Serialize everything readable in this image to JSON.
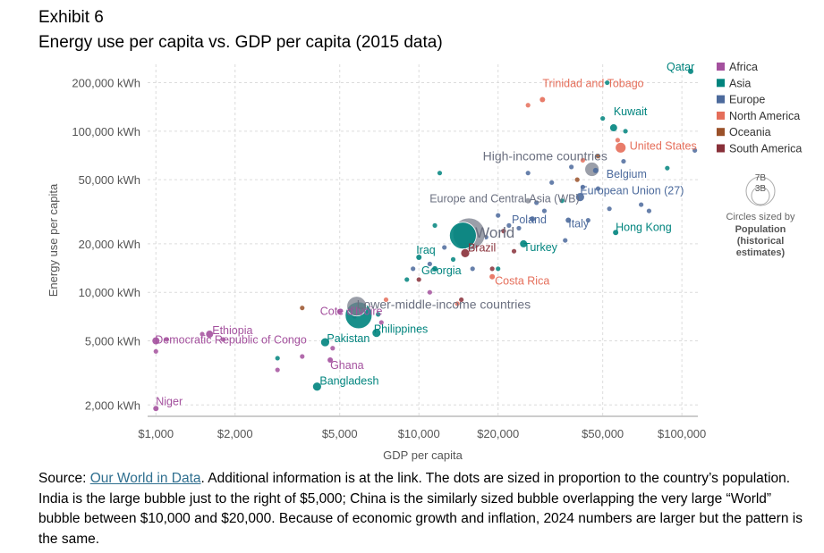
{
  "header": {
    "exhibit": "Exhibit 6",
    "title": "Energy use per capita vs. GDP per capita (2015 data)"
  },
  "source": {
    "prefix": "Source: ",
    "link_text": "Our World in Data",
    "rest": ". Additional information is at the link. The dots are sized in proportion to the country’s population. India is the large bubble just to the right of $5,000; China is the similarly sized bubble overlapping the very large “World” bubble between $10,000 and $20,000. Because of economic growth and inflation, 2024 numbers are larger but the pattern is the same."
  },
  "chart_data": {
    "type": "scatter",
    "xlabel": "GDP per capita",
    "ylabel": "Energy use per capita",
    "x_scale": "log",
    "y_scale": "log",
    "xlim": [
      930,
      115000
    ],
    "ylim": [
      1700,
      260000
    ],
    "grid": true,
    "x_ticks": [
      {
        "value": 1000,
        "label": "$1,000"
      },
      {
        "value": 2000,
        "label": "$2,000"
      },
      {
        "value": 5000,
        "label": "$5,000"
      },
      {
        "value": 10000,
        "label": "$10,000"
      },
      {
        "value": 20000,
        "label": "$20,000"
      },
      {
        "value": 50000,
        "label": "$50,000"
      },
      {
        "value": 100000,
        "label": "$100,000"
      }
    ],
    "y_ticks": [
      {
        "value": 2000,
        "label": "2,000 kWh"
      },
      {
        "value": 5000,
        "label": "5,000 kWh"
      },
      {
        "value": 10000,
        "label": "10,000 kWh"
      },
      {
        "value": 20000,
        "label": "20,000 kWh"
      },
      {
        "value": 50000,
        "label": "50,000 kWh"
      },
      {
        "value": 100000,
        "label": "100,000 kWh"
      },
      {
        "value": 200000,
        "label": "200,000 kWh"
      }
    ],
    "legend": {
      "placement": "right",
      "entries": [
        {
          "name": "Africa",
          "color": "#a4519e"
        },
        {
          "name": "Asia",
          "color": "#00847e"
        },
        {
          "name": "Europe",
          "color": "#4c6a9c"
        },
        {
          "name": "North America",
          "color": "#e56e5a"
        },
        {
          "name": "Oceania",
          "color": "#9a5129"
        },
        {
          "name": "South America",
          "color": "#883039"
        }
      ],
      "size_key": {
        "big": "7B",
        "small": "3B",
        "caption": "Circles sized by",
        "caption_bold": "Population (historical estimates)"
      }
    },
    "colors": {
      "Africa": "#a4519e",
      "Asia": "#00847e",
      "Europe": "#4c6a9c",
      "North America": "#e56e5a",
      "Oceania": "#9a5129",
      "South America": "#883039",
      "Aggregate": "#7a7f8c"
    },
    "labeled_points": [
      {
        "name": "Qatar",
        "region": "Asia",
        "x": 108000,
        "y": 235000,
        "size": 3
      },
      {
        "name": "Trinidad and Tobago",
        "region": "North America",
        "x": 29500,
        "y": 157000,
        "size": 3
      },
      {
        "name": "Kuwait",
        "region": "Asia",
        "x": 55000,
        "y": 105000,
        "size": 4
      },
      {
        "name": "United States",
        "region": "North America",
        "x": 58500,
        "y": 79000,
        "size": 6
      },
      {
        "name": "High-income countries",
        "region": "Aggregate",
        "x": 45500,
        "y": 58000,
        "size": 8,
        "aggregate": true
      },
      {
        "name": "Belgium",
        "region": "Europe",
        "x": 47000,
        "y": 57000,
        "size": 3
      },
      {
        "name": "European Union (27)",
        "region": "Europe",
        "x": 41000,
        "y": 39000,
        "size": 5
      },
      {
        "name": "Europe and Central Asia (WB)",
        "region": "Aggregate",
        "x": 26000,
        "y": 37000,
        "size": 3,
        "aggregate": true
      },
      {
        "name": "World",
        "region": "Aggregate",
        "x": 15500,
        "y": 23000,
        "size": 18,
        "aggregate": true
      },
      {
        "name": "Poland",
        "region": "Europe",
        "x": 27000,
        "y": 28500,
        "size": 3
      },
      {
        "name": "Italy",
        "region": "Europe",
        "x": 37000,
        "y": 28000,
        "size": 3
      },
      {
        "name": "Hong Kong",
        "region": "Asia",
        "x": 56000,
        "y": 23500,
        "size": 3
      },
      {
        "name": "Brazil",
        "region": "South America",
        "x": 15000,
        "y": 17500,
        "size": 5
      },
      {
        "name": "Turkey",
        "region": "Asia",
        "x": 25000,
        "y": 20000,
        "size": 4
      },
      {
        "name": "Iraq",
        "region": "Asia",
        "x": 10000,
        "y": 16500,
        "size": 3
      },
      {
        "name": "Georgia",
        "region": "Asia",
        "x": 11500,
        "y": 14000,
        "size": 3
      },
      {
        "name": "Costa Rica",
        "region": "North America",
        "x": 19000,
        "y": 12500,
        "size": 3
      },
      {
        "name": "Lower-middle-income countries",
        "region": "Aggregate",
        "x": 5800,
        "y": 8200,
        "size": 11,
        "aggregate": true
      },
      {
        "name": "Cote d'Ivoire",
        "region": "Africa",
        "x": 5000,
        "y": 7600,
        "size": 3
      },
      {
        "name": "Ethiopia",
        "region": "Africa",
        "x": 1600,
        "y": 5500,
        "size": 4
      },
      {
        "name": "Democratic Republic of Congo",
        "region": "Africa",
        "x": 1000,
        "y": 5000,
        "size": 4
      },
      {
        "name": "Pakistan",
        "region": "Asia",
        "x": 4400,
        "y": 4900,
        "size": 5
      },
      {
        "name": "Philippines",
        "region": "Asia",
        "x": 6900,
        "y": 5600,
        "size": 5
      },
      {
        "name": "Ghana",
        "region": "Africa",
        "x": 4600,
        "y": 3800,
        "size": 3
      },
      {
        "name": "Bangladesh",
        "region": "Asia",
        "x": 4100,
        "y": 2600,
        "size": 5
      },
      {
        "name": "Niger",
        "region": "Africa",
        "x": 1000,
        "y": 1900,
        "size": 3
      },
      {
        "name": "India",
        "region": "Asia",
        "x": 5900,
        "y": 7200,
        "size": 15
      },
      {
        "name": "China",
        "region": "Asia",
        "x": 14700,
        "y": 22500,
        "size": 15
      }
    ],
    "other_points": [
      {
        "region": "Africa",
        "x": 1000,
        "y": 4300
      },
      {
        "region": "Africa",
        "x": 1100,
        "y": 5100
      },
      {
        "region": "Africa",
        "x": 1500,
        "y": 5500
      },
      {
        "region": "Africa",
        "x": 1800,
        "y": 5100
      },
      {
        "region": "Africa",
        "x": 2900,
        "y": 3300
      },
      {
        "region": "Africa",
        "x": 3600,
        "y": 4000
      },
      {
        "region": "Africa",
        "x": 4700,
        "y": 4500
      },
      {
        "region": "Africa",
        "x": 5700,
        "y": 7100
      },
      {
        "region": "Africa",
        "x": 7200,
        "y": 6500
      },
      {
        "region": "Africa",
        "x": 11000,
        "y": 10000
      },
      {
        "region": "Asia",
        "x": 2900,
        "y": 3900
      },
      {
        "region": "Asia",
        "x": 7000,
        "y": 7300
      },
      {
        "region": "Asia",
        "x": 11500,
        "y": 26000
      },
      {
        "region": "Asia",
        "x": 12000,
        "y": 55000
      },
      {
        "region": "Asia",
        "x": 13500,
        "y": 16000
      },
      {
        "region": "Asia",
        "x": 20000,
        "y": 14000
      },
      {
        "region": "Asia",
        "x": 35000,
        "y": 37000
      },
      {
        "region": "Asia",
        "x": 50000,
        "y": 120000
      },
      {
        "region": "Asia",
        "x": 52000,
        "y": 200000
      },
      {
        "region": "Asia",
        "x": 61000,
        "y": 100000
      },
      {
        "region": "Asia",
        "x": 88000,
        "y": 59000
      },
      {
        "region": "Asia",
        "x": 9000,
        "y": 12000
      },
      {
        "region": "Europe",
        "x": 9500,
        "y": 14000
      },
      {
        "region": "Europe",
        "x": 11000,
        "y": 15000
      },
      {
        "region": "Europe",
        "x": 12500,
        "y": 19000
      },
      {
        "region": "Europe",
        "x": 16000,
        "y": 14000
      },
      {
        "region": "Europe",
        "x": 18000,
        "y": 22000
      },
      {
        "region": "Europe",
        "x": 20000,
        "y": 30000
      },
      {
        "region": "Europe",
        "x": 22000,
        "y": 26000
      },
      {
        "region": "Europe",
        "x": 24000,
        "y": 25000
      },
      {
        "region": "Europe",
        "x": 26000,
        "y": 55000
      },
      {
        "region": "Europe",
        "x": 28000,
        "y": 36000
      },
      {
        "region": "Europe",
        "x": 30000,
        "y": 32000
      },
      {
        "region": "Europe",
        "x": 32000,
        "y": 48000
      },
      {
        "region": "Europe",
        "x": 36000,
        "y": 21000
      },
      {
        "region": "Europe",
        "x": 38000,
        "y": 60000
      },
      {
        "region": "Europe",
        "x": 42000,
        "y": 45000
      },
      {
        "region": "Europe",
        "x": 44000,
        "y": 28000
      },
      {
        "region": "Europe",
        "x": 48000,
        "y": 44000
      },
      {
        "region": "Europe",
        "x": 53000,
        "y": 33000
      },
      {
        "region": "Europe",
        "x": 60000,
        "y": 65000
      },
      {
        "region": "Europe",
        "x": 70000,
        "y": 35000
      },
      {
        "region": "Europe",
        "x": 75000,
        "y": 32000
      },
      {
        "region": "Europe",
        "x": 112000,
        "y": 76000
      },
      {
        "region": "North America",
        "x": 7500,
        "y": 9000
      },
      {
        "region": "North America",
        "x": 14000,
        "y": 8500
      },
      {
        "region": "North America",
        "x": 16000,
        "y": 20000
      },
      {
        "region": "North America",
        "x": 26000,
        "y": 145000
      },
      {
        "region": "North America",
        "x": 42000,
        "y": 66000
      },
      {
        "region": "North America",
        "x": 57000,
        "y": 88000
      },
      {
        "region": "Oceania",
        "x": 3600,
        "y": 8000
      },
      {
        "region": "Oceania",
        "x": 40000,
        "y": 50000
      },
      {
        "region": "Oceania",
        "x": 48000,
        "y": 70000
      },
      {
        "region": "South America",
        "x": 5500,
        "y": 7800
      },
      {
        "region": "South America",
        "x": 10000,
        "y": 12000
      },
      {
        "region": "South America",
        "x": 14500,
        "y": 9000
      },
      {
        "region": "South America",
        "x": 19000,
        "y": 14000
      },
      {
        "region": "South America",
        "x": 21000,
        "y": 24000
      },
      {
        "region": "South America",
        "x": 23000,
        "y": 18000
      }
    ]
  }
}
